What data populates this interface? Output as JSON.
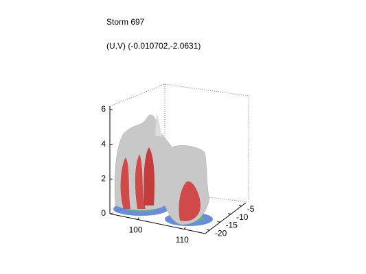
{
  "chart_data": {
    "type": "isosurface3d",
    "title": "Storm 697",
    "subtitle": "(U,V) (-0.010702,-2.0631)",
    "xlim": [
      94,
      114.5
    ],
    "xticks": [
      100,
      110
    ],
    "ylim": [
      -22,
      -3
    ],
    "yticks": [
      -20,
      -15,
      -10,
      -5
    ],
    "zlim": [
      0,
      6.2
    ],
    "zticks": [
      0,
      2,
      4,
      6
    ],
    "grid": true
  }
}
